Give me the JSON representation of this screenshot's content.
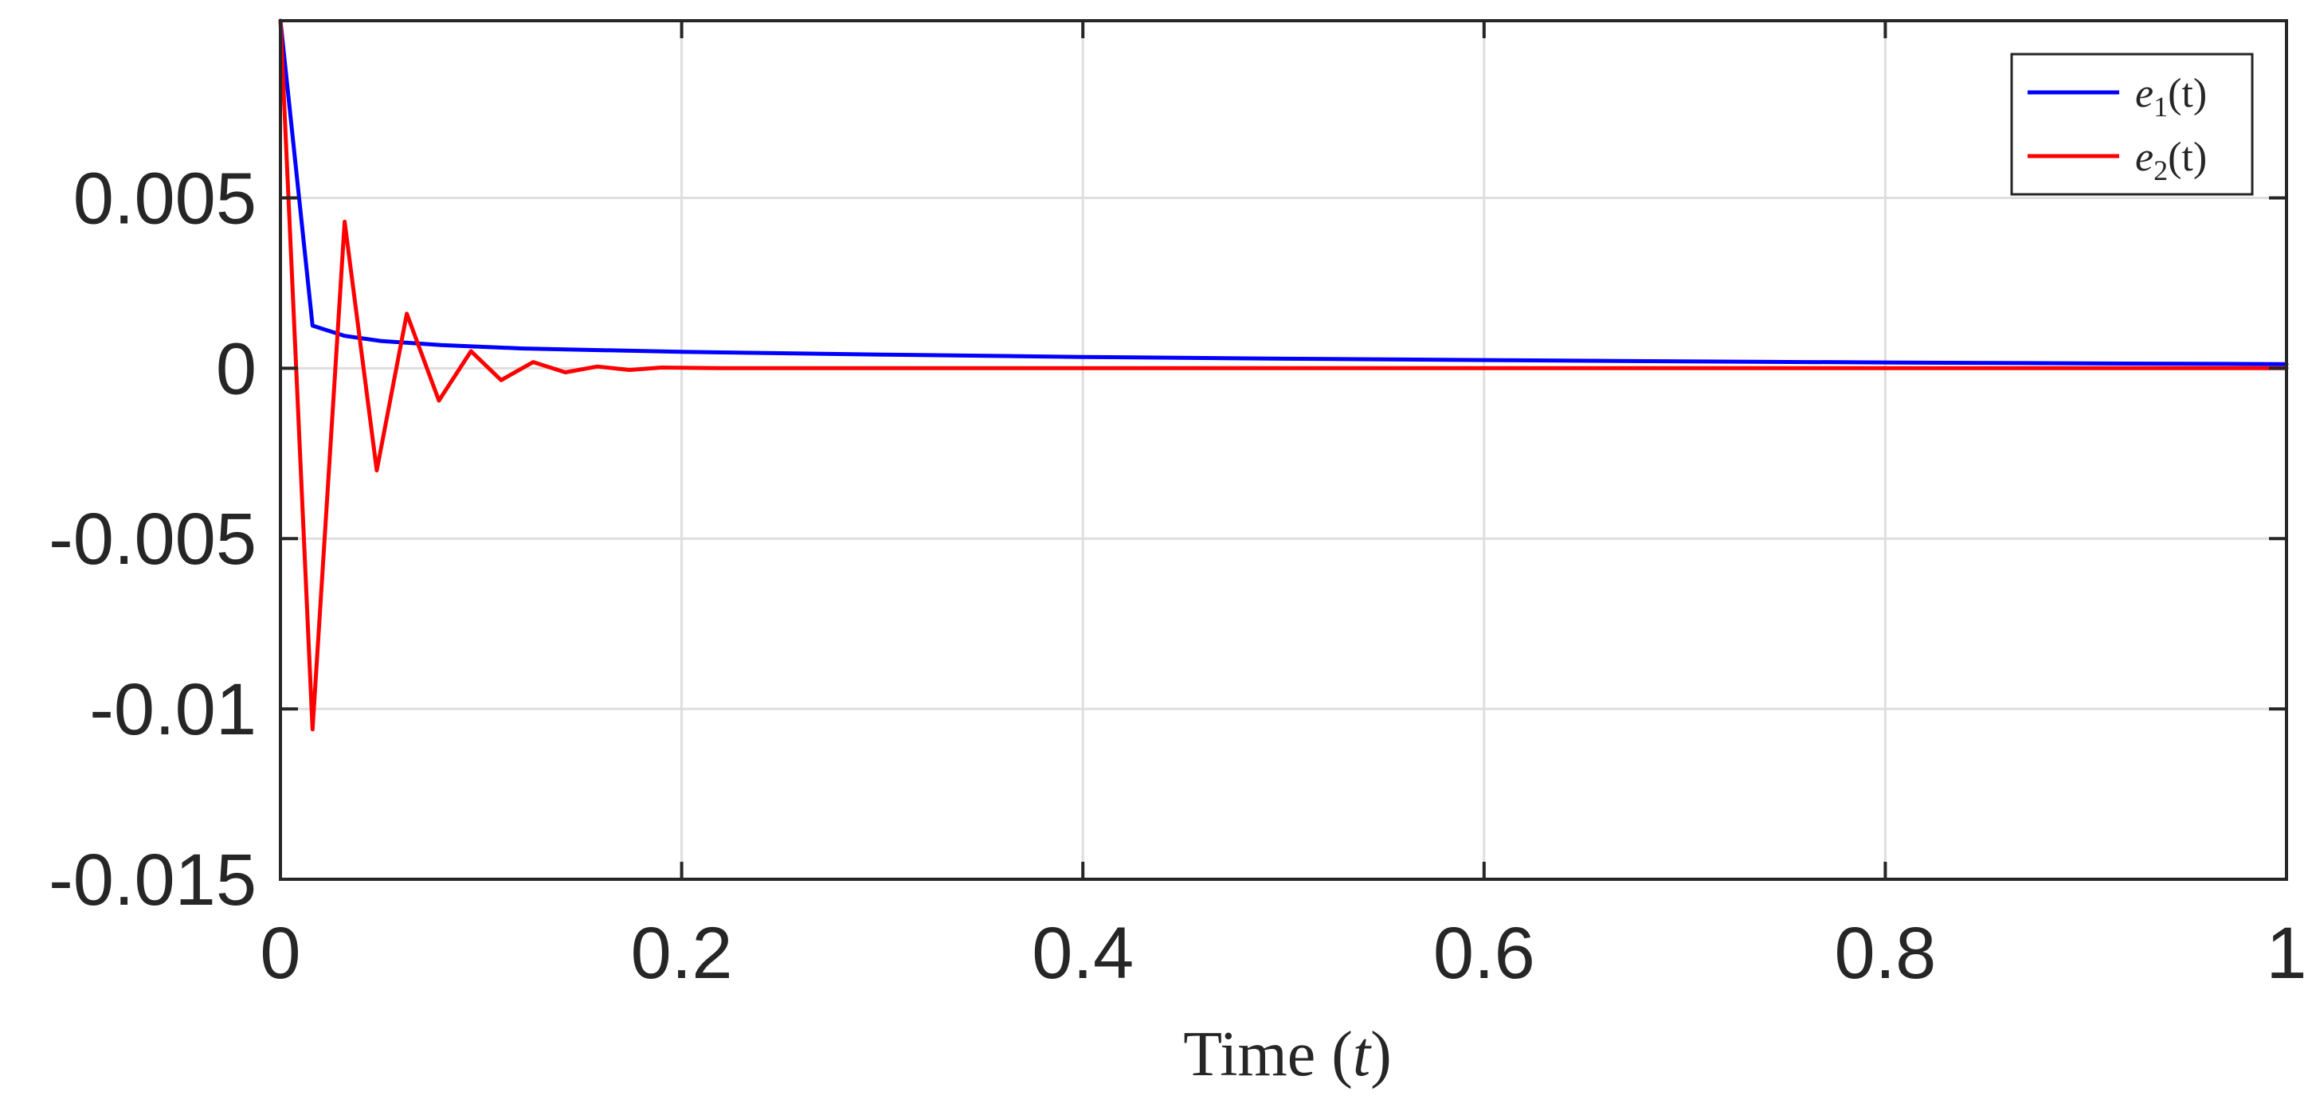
{
  "chart_data": {
    "type": "line",
    "xlabel": "Time (t)",
    "ylabel": "",
    "xlim": [
      0,
      1
    ],
    "ylim": [
      -0.015,
      0.0102
    ],
    "xticks": [
      0,
      0.2,
      0.4,
      0.6,
      0.8,
      1
    ],
    "xtick_labels": [
      "0",
      "0.2",
      "0.4",
      "0.6",
      "0.8",
      "1"
    ],
    "yticks": [
      -0.015,
      -0.01,
      -0.005,
      0,
      0.005
    ],
    "ytick_labels": [
      "-0.015",
      "-0.01",
      "-0.005",
      "0",
      "0.005"
    ],
    "grid": true,
    "legend_position": "top-right",
    "series": [
      {
        "name": "e1(t)",
        "color": "#0000ff",
        "x": [
          0,
          0.016,
          0.032,
          0.05,
          0.08,
          0.12,
          0.2,
          0.3,
          0.4,
          0.5,
          0.6,
          0.7,
          0.8,
          0.9,
          1.0
        ],
        "y": [
          0.0102,
          0.00125,
          0.00095,
          0.0008,
          0.00068,
          0.00058,
          0.00048,
          0.0004,
          0.00033,
          0.00028,
          0.00024,
          0.0002,
          0.00017,
          0.00014,
          0.00012
        ]
      },
      {
        "name": "e2(t)",
        "color": "#ff0000",
        "x": [
          0,
          0.016,
          0.032,
          0.048,
          0.063,
          0.079,
          0.095,
          0.11,
          0.126,
          0.142,
          0.158,
          0.174,
          0.19,
          0.22,
          0.3,
          0.5,
          0.7,
          1.0
        ],
        "y": [
          0.0102,
          -0.0106,
          0.0043,
          -0.003,
          0.0016,
          -0.00095,
          0.0005,
          -0.00035,
          0.00018,
          -0.00012,
          5e-05,
          -5e-05,
          2e-05,
          0.0,
          0.0,
          0.0,
          0.0,
          0.0
        ]
      }
    ]
  },
  "legend": {
    "items": [
      {
        "base": "e",
        "sub": "1",
        "tail": "(t)"
      },
      {
        "base": "e",
        "sub": "2",
        "tail": "(t)"
      }
    ]
  },
  "axis": {
    "xlabel_main": "Time (",
    "xlabel_var": "t",
    "xlabel_end": ")"
  }
}
